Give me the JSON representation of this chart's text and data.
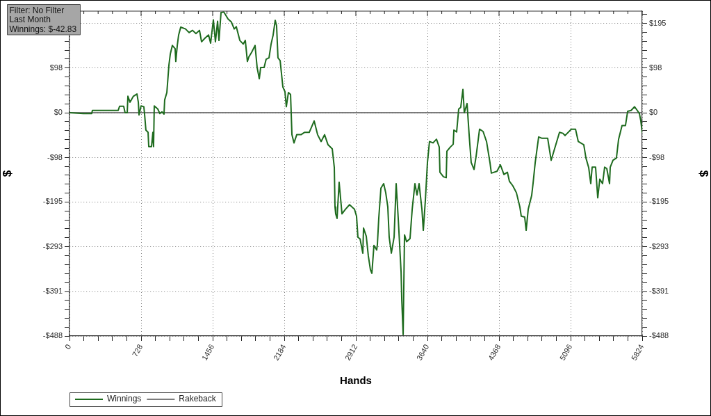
{
  "chart_data": {
    "type": "line",
    "xlabel": "Hands",
    "ylabel": "$",
    "y2label": "$",
    "annotations": [
      "Filter: No Filter",
      "Last Month",
      "Winnings: $-42.83"
    ],
    "xlim": [
      0,
      5824
    ],
    "xticks": [
      0,
      {
        "value": 145.6,
        "label": null
      },
      {
        "value": 291.2,
        "label": null
      },
      {
        "value": 436.8,
        "label": null
      },
      {
        "value": 582.4,
        "label": null
      },
      728,
      {
        "value": 873.6,
        "label": null
      },
      {
        "value": 1019.2,
        "label": null
      },
      {
        "value": 1164.8,
        "label": null
      },
      {
        "value": 1310.4,
        "label": null
      },
      1456,
      {
        "value": 1601.6,
        "label": null
      },
      {
        "value": 1747.2,
        "label": null
      },
      {
        "value": 1892.8,
        "label": null
      },
      {
        "value": 2038.4,
        "label": null
      },
      2184,
      {
        "value": 2329.6,
        "label": null
      },
      {
        "value": 2475.2,
        "label": null
      },
      {
        "value": 2620.8,
        "label": null
      },
      {
        "value": 2766.4,
        "label": null
      },
      2912,
      {
        "value": 3057.6,
        "label": null
      },
      {
        "value": 3203.2,
        "label": null
      },
      {
        "value": 3348.8,
        "label": null
      },
      {
        "value": 3494.4,
        "label": null
      },
      3640,
      {
        "value": 3785.6,
        "label": null
      },
      {
        "value": 3931.2,
        "label": null
      },
      {
        "value": 4076.8,
        "label": null
      },
      {
        "value": 4222.4,
        "label": null
      },
      4368,
      {
        "value": 4513.6,
        "label": null
      },
      {
        "value": 4659.2,
        "label": null
      },
      {
        "value": 4804.8,
        "label": null
      },
      {
        "value": 4950.4,
        "label": null
      },
      5096,
      {
        "value": 5241.6,
        "label": null
      },
      {
        "value": 5387.2,
        "label": null
      },
      {
        "value": 5532.8,
        "label": null
      },
      {
        "value": 5678.4,
        "label": null
      },
      5824
    ],
    "ylim": [
      -488,
      222
    ],
    "yticks": [
      {
        "value": -488,
        "label": "-$488"
      },
      {
        "value": -468.6,
        "label": null
      },
      {
        "value": -449.2,
        "label": null
      },
      {
        "value": -429.8,
        "label": null
      },
      {
        "value": -410.4,
        "label": null
      },
      {
        "value": -391,
        "label": "-$391"
      },
      {
        "value": -371.4,
        "label": null
      },
      {
        "value": -351.8,
        "label": null
      },
      {
        "value": -332.2,
        "label": null
      },
      {
        "value": -312.6,
        "label": null
      },
      {
        "value": -293,
        "label": "-$293"
      },
      {
        "value": -273.4,
        "label": null
      },
      {
        "value": -253.8,
        "label": null
      },
      {
        "value": -234.2,
        "label": null
      },
      {
        "value": -214.6,
        "label": null
      },
      {
        "value": -195,
        "label": "-$195"
      },
      {
        "value": -175.6,
        "label": null
      },
      {
        "value": -156.2,
        "label": null
      },
      {
        "value": -136.8,
        "label": null
      },
      {
        "value": -117.4,
        "label": null
      },
      {
        "value": -98,
        "label": "-$98"
      },
      {
        "value": -78.4,
        "label": null
      },
      {
        "value": -58.8,
        "label": null
      },
      {
        "value": -39.2,
        "label": null
      },
      {
        "value": -19.6,
        "label": null
      },
      {
        "value": 0,
        "label": "$0"
      },
      {
        "value": 19.6,
        "label": null
      },
      {
        "value": 39.2,
        "label": null
      },
      {
        "value": 58.8,
        "label": null
      },
      {
        "value": 78.4,
        "label": null
      },
      {
        "value": 98,
        "label": "$98"
      },
      {
        "value": 117.4,
        "label": null
      },
      {
        "value": 136.8,
        "label": null
      },
      {
        "value": 156.2,
        "label": null
      },
      {
        "value": 175.6,
        "label": null
      },
      {
        "value": 195,
        "label": null
      },
      {
        "value": 214.6,
        "label": null
      }
    ],
    "y2lim": [
      -488,
      222
    ],
    "y2ticks": [
      {
        "value": -488,
        "label": "-$488"
      },
      {
        "value": -468.6,
        "label": null
      },
      {
        "value": -449.2,
        "label": null
      },
      {
        "value": -429.8,
        "label": null
      },
      {
        "value": -410.4,
        "label": null
      },
      {
        "value": -391,
        "label": "-$391"
      },
      {
        "value": -371.4,
        "label": null
      },
      {
        "value": -351.8,
        "label": null
      },
      {
        "value": -332.2,
        "label": null
      },
      {
        "value": -312.6,
        "label": null
      },
      {
        "value": -293,
        "label": "-$293"
      },
      {
        "value": -273.4,
        "label": null
      },
      {
        "value": -253.8,
        "label": null
      },
      {
        "value": -234.2,
        "label": null
      },
      {
        "value": -214.6,
        "label": null
      },
      {
        "value": -195,
        "label": "-$195"
      },
      {
        "value": -175.6,
        "label": null
      },
      {
        "value": -156.2,
        "label": null
      },
      {
        "value": -136.8,
        "label": null
      },
      {
        "value": -117.4,
        "label": null
      },
      {
        "value": -98,
        "label": "-$98"
      },
      {
        "value": -78.4,
        "label": null
      },
      {
        "value": -58.8,
        "label": null
      },
      {
        "value": -39.2,
        "label": null
      },
      {
        "value": -19.6,
        "label": null
      },
      {
        "value": 0,
        "label": "$0"
      },
      {
        "value": 19.6,
        "label": null
      },
      {
        "value": 39.2,
        "label": null
      },
      {
        "value": 58.8,
        "label": null
      },
      {
        "value": 78.4,
        "label": null
      },
      {
        "value": 98,
        "label": "$98"
      },
      {
        "value": 117.4,
        "label": null
      },
      {
        "value": 136.8,
        "label": null
      },
      {
        "value": 156.2,
        "label": null
      },
      {
        "value": 175.6,
        "label": null
      },
      {
        "value": 195,
        "label": "$195"
      },
      {
        "value": 214.6,
        "label": null
      }
    ],
    "grid": true,
    "legend": "bottom left",
    "series": [
      {
        "name": "Winnings",
        "color": "#1e6b1e",
        "x": [
          0,
          141,
          226,
          233,
          495,
          509,
          551,
          565,
          587,
          594,
          615,
          650,
          686,
          700,
          707,
          728,
          756,
          763,
          777,
          799,
          806,
          834,
          848,
          855,
          862,
          898,
          919,
          940,
          961,
          968,
          990,
          1011,
          1025,
          1046,
          1074,
          1081,
          1096,
          1110,
          1131,
          1180,
          1216,
          1251,
          1286,
          1322,
          1343,
          1378,
          1414,
          1435,
          1463,
          1484,
          1506,
          1520,
          1541,
          1569,
          1590,
          1612,
          1647,
          1675,
          1696,
          1732,
          1767,
          1788,
          1809,
          1824,
          1852,
          1887,
          1908,
          1930,
          1944,
          1979,
          2000,
          2029,
          2050,
          2071,
          2092,
          2106,
          2120,
          2142,
          2170,
          2191,
          2205,
          2226,
          2248,
          2262,
          2283,
          2311,
          2354,
          2389,
          2438,
          2488,
          2523,
          2559,
          2594,
          2629,
          2672,
          2693,
          2700,
          2707,
          2721,
          2742,
          2771,
          2806,
          2848,
          2898,
          2919,
          2933,
          2955,
          2983,
          2990,
          3018,
          3039,
          3060,
          3075,
          3096,
          3124,
          3131,
          3145,
          3167,
          3195,
          3216,
          3237,
          3251,
          3273,
          3301,
          3322,
          3343,
          3372,
          3379,
          3393,
          3407,
          3428,
          3463,
          3485,
          3513,
          3534,
          3555,
          3584,
          3598,
          3619,
          3640,
          3661,
          3697,
          3732,
          3760,
          3767,
          3803,
          3831,
          3838,
          3873,
          3902,
          3909,
          3937,
          3958,
          3979,
          4001,
          4015,
          4043,
          4064,
          4085,
          4114,
          4135,
          4170,
          4206,
          4241,
          4276,
          4290,
          4347,
          4382,
          4418,
          4453,
          4474,
          4509,
          4545,
          4580,
          4594,
          4629,
          4644,
          4665,
          4700,
          4714,
          4736,
          4771,
          4806,
          4863,
          4898,
          4926,
          4983,
          5018,
          5039,
          5103,
          5146,
          5174,
          5230,
          5252,
          5280,
          5301,
          5315,
          5350,
          5372,
          5393,
          5421,
          5442,
          5464,
          5492,
          5499,
          5527,
          5562,
          5584,
          5619,
          5654,
          5676,
          5711,
          5746,
          5774,
          5796,
          5810,
          5824
        ],
        "values": [
          0,
          -2,
          -2,
          5,
          5,
          14,
          14,
          0,
          0,
          36,
          23,
          36,
          41,
          23,
          -5,
          15,
          13,
          -2,
          -38,
          -43,
          -74,
          -74,
          -43,
          -74,
          15,
          8,
          -2,
          2,
          -3,
          28,
          44,
          104,
          128,
          147,
          140,
          112,
          147,
          170,
          187,
          183,
          175,
          180,
          173,
          180,
          155,
          163,
          170,
          152,
          203,
          155,
          200,
          158,
          219,
          220,
          213,
          205,
          198,
          183,
          188,
          158,
          150,
          158,
          112,
          122,
          132,
          147,
          99,
          74,
          99,
          99,
          117,
          120,
          150,
          170,
          202,
          190,
          120,
          114,
          56,
          46,
          13,
          44,
          40,
          -48,
          -66,
          -48,
          -48,
          -43,
          -43,
          -18,
          -48,
          -63,
          -48,
          -70,
          -79,
          -120,
          -206,
          -221,
          -231,
          -152,
          -221,
          -211,
          -201,
          -211,
          -226,
          -272,
          -276,
          -307,
          -252,
          -270,
          -313,
          -343,
          -351,
          -290,
          -300,
          -288,
          -231,
          -165,
          -155,
          -175,
          -206,
          -272,
          -307,
          -272,
          -155,
          -231,
          -348,
          -409,
          -485,
          -267,
          -282,
          -275,
          -211,
          -155,
          -180,
          -155,
          -211,
          -257,
          -191,
          -109,
          -63,
          -66,
          -58,
          -75,
          -130,
          -140,
          -142,
          -84,
          -75,
          -69,
          -38,
          -42,
          8,
          12,
          51,
          0,
          20,
          -48,
          -109,
          -124,
          -95,
          -36,
          -41,
          -63,
          -109,
          -132,
          -128,
          -114,
          -135,
          -130,
          -150,
          -160,
          -175,
          -206,
          -226,
          -228,
          -257,
          -211,
          -181,
          -155,
          -109,
          -53,
          -56,
          -56,
          -104,
          -84,
          -43,
          -45,
          -50,
          -36,
          -36,
          -63,
          -70,
          -99,
          -120,
          -155,
          -119,
          -119,
          -186,
          -145,
          -155,
          -119,
          -122,
          -155,
          -119,
          -104,
          -99,
          -58,
          -28,
          -28,
          3,
          5,
          13,
          5,
          -2,
          -18,
          -43
        ]
      },
      {
        "name": "Rakeback",
        "color": "#505050",
        "x": [
          0,
          5824
        ],
        "values": [
          0,
          0
        ]
      }
    ]
  }
}
